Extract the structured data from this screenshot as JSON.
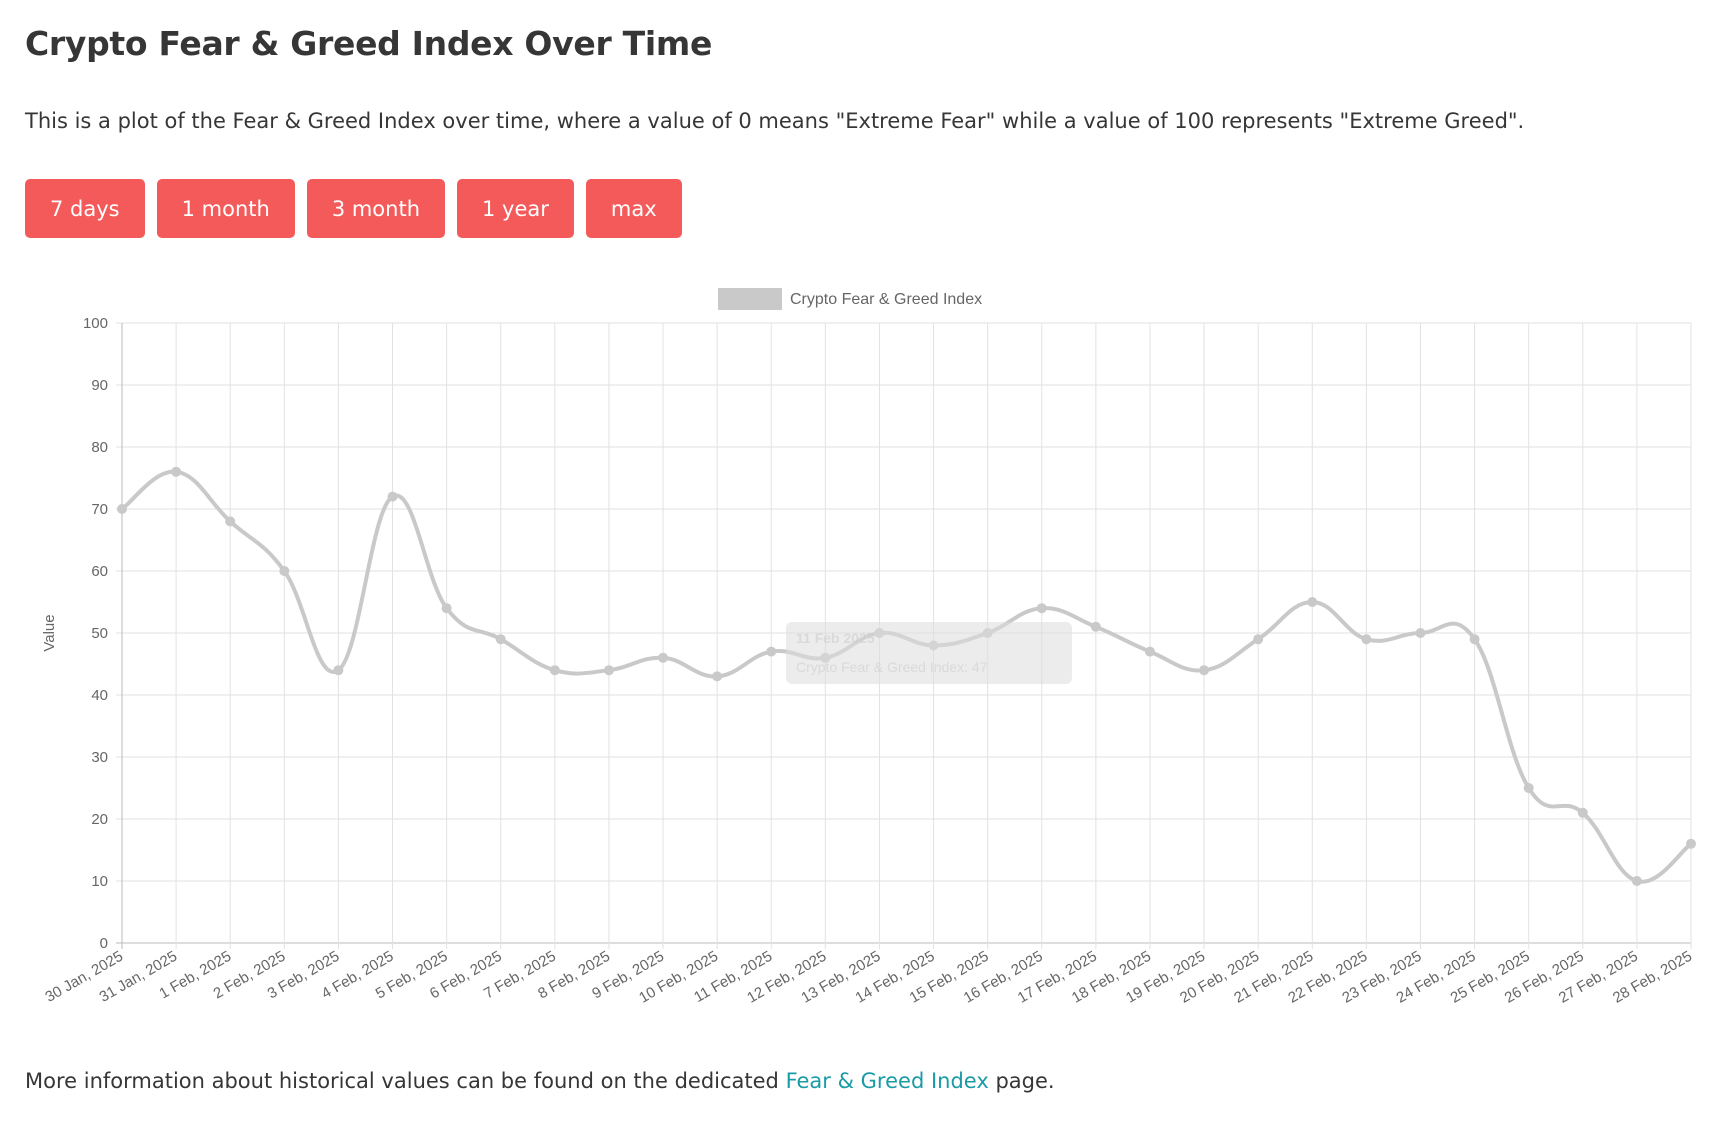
{
  "title": "Crypto Fear & Greed Index Over Time",
  "description": "This is a plot of the Fear & Greed Index over time, where a value of 0 means \"Extreme Fear\" while a value of 100 represents \"Extreme Greed\".",
  "buttons": [
    "7 days",
    "1 month",
    "3 month",
    "1 year",
    "max"
  ],
  "footer": {
    "before": "More information about historical values can be found on the dedicated ",
    "link": "Fear & Greed Index",
    "after": " page."
  },
  "colors": {
    "button": "#f55a5a",
    "line": "#c9c9c9",
    "link": "#1a9ba5"
  },
  "tooltip": {
    "title": "11 Feb 2025",
    "body": "Crypto Fear & Greed Index: 47"
  },
  "chart_data": {
    "type": "line",
    "title": "",
    "legend": [
      "Crypto Fear & Greed Index"
    ],
    "legend_position": "top",
    "xlabel": "",
    "ylabel": "Value",
    "ylim": [
      0,
      100
    ],
    "yticks": [
      0,
      10,
      20,
      30,
      40,
      50,
      60,
      70,
      80,
      90,
      100
    ],
    "grid": true,
    "categories": [
      "30 Jan, 2025",
      "31 Jan, 2025",
      "1 Feb, 2025",
      "2 Feb, 2025",
      "3 Feb, 2025",
      "4 Feb, 2025",
      "5 Feb, 2025",
      "6 Feb, 2025",
      "7 Feb, 2025",
      "8 Feb, 2025",
      "9 Feb, 2025",
      "10 Feb, 2025",
      "11 Feb, 2025",
      "12 Feb, 2025",
      "13 Feb, 2025",
      "14 Feb, 2025",
      "15 Feb, 2025",
      "16 Feb, 2025",
      "17 Feb, 2025",
      "18 Feb, 2025",
      "19 Feb, 2025",
      "20 Feb, 2025",
      "21 Feb, 2025",
      "22 Feb, 2025",
      "23 Feb, 2025",
      "24 Feb, 2025",
      "25 Feb, 2025",
      "26 Feb, 2025",
      "27 Feb, 2025",
      "28 Feb, 2025"
    ],
    "series": [
      {
        "name": "Crypto Fear & Greed Index",
        "values": [
          70,
          76,
          68,
          60,
          44,
          72,
          54,
          49,
          44,
          44,
          46,
          43,
          47,
          46,
          50,
          48,
          50,
          54,
          51,
          47,
          44,
          49,
          55,
          49,
          50,
          49,
          25,
          21,
          10,
          16
        ]
      }
    ]
  }
}
